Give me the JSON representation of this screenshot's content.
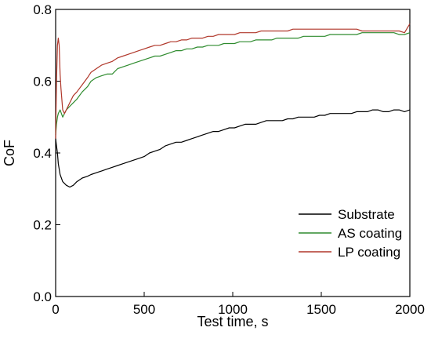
{
  "chart_data": {
    "type": "line",
    "title": "",
    "xlabel": "Test time, s",
    "ylabel": "CoF",
    "xlim": [
      0,
      2000
    ],
    "ylim": [
      0.0,
      0.8
    ],
    "x_ticks": [
      "0",
      "500",
      "1000",
      "1500",
      "2000"
    ],
    "y_ticks": [
      "0.0",
      "0.2",
      "0.4",
      "0.6",
      "0.8"
    ],
    "grid": false,
    "legend_position": "lower-right",
    "series": [
      {
        "name": "Substrate",
        "color": "#000000",
        "points": [
          [
            0,
            0.44
          ],
          [
            5,
            0.42
          ],
          [
            10,
            0.4
          ],
          [
            15,
            0.37
          ],
          [
            25,
            0.34
          ],
          [
            40,
            0.32
          ],
          [
            60,
            0.31
          ],
          [
            80,
            0.305
          ],
          [
            100,
            0.31
          ],
          [
            120,
            0.32
          ],
          [
            150,
            0.33
          ],
          [
            180,
            0.335
          ],
          [
            200,
            0.34
          ],
          [
            230,
            0.345
          ],
          [
            260,
            0.35
          ],
          [
            290,
            0.355
          ],
          [
            320,
            0.36
          ],
          [
            350,
            0.365
          ],
          [
            380,
            0.37
          ],
          [
            410,
            0.375
          ],
          [
            440,
            0.38
          ],
          [
            470,
            0.385
          ],
          [
            500,
            0.39
          ],
          [
            530,
            0.4
          ],
          [
            560,
            0.405
          ],
          [
            590,
            0.41
          ],
          [
            620,
            0.42
          ],
          [
            650,
            0.425
          ],
          [
            680,
            0.43
          ],
          [
            710,
            0.43
          ],
          [
            740,
            0.435
          ],
          [
            770,
            0.44
          ],
          [
            800,
            0.445
          ],
          [
            830,
            0.45
          ],
          [
            860,
            0.455
          ],
          [
            890,
            0.46
          ],
          [
            920,
            0.46
          ],
          [
            950,
            0.465
          ],
          [
            980,
            0.47
          ],
          [
            1010,
            0.47
          ],
          [
            1040,
            0.475
          ],
          [
            1070,
            0.48
          ],
          [
            1100,
            0.48
          ],
          [
            1130,
            0.48
          ],
          [
            1160,
            0.485
          ],
          [
            1190,
            0.49
          ],
          [
            1220,
            0.49
          ],
          [
            1250,
            0.49
          ],
          [
            1280,
            0.49
          ],
          [
            1310,
            0.495
          ],
          [
            1340,
            0.495
          ],
          [
            1370,
            0.5
          ],
          [
            1400,
            0.5
          ],
          [
            1430,
            0.5
          ],
          [
            1460,
            0.5
          ],
          [
            1490,
            0.505
          ],
          [
            1520,
            0.505
          ],
          [
            1550,
            0.51
          ],
          [
            1580,
            0.51
          ],
          [
            1610,
            0.51
          ],
          [
            1640,
            0.51
          ],
          [
            1670,
            0.51
          ],
          [
            1700,
            0.515
          ],
          [
            1730,
            0.515
          ],
          [
            1760,
            0.515
          ],
          [
            1790,
            0.52
          ],
          [
            1820,
            0.52
          ],
          [
            1850,
            0.515
          ],
          [
            1880,
            0.515
          ],
          [
            1910,
            0.52
          ],
          [
            1940,
            0.52
          ],
          [
            1970,
            0.515
          ],
          [
            2000,
            0.52
          ]
        ]
      },
      {
        "name": "AS coating",
        "color": "#2e8b2e",
        "points": [
          [
            0,
            0.45
          ],
          [
            5,
            0.48
          ],
          [
            10,
            0.5
          ],
          [
            15,
            0.51
          ],
          [
            25,
            0.52
          ],
          [
            40,
            0.5
          ],
          [
            60,
            0.52
          ],
          [
            80,
            0.53
          ],
          [
            100,
            0.54
          ],
          [
            120,
            0.55
          ],
          [
            150,
            0.57
          ],
          [
            180,
            0.585
          ],
          [
            200,
            0.6
          ],
          [
            230,
            0.61
          ],
          [
            260,
            0.615
          ],
          [
            290,
            0.62
          ],
          [
            320,
            0.62
          ],
          [
            350,
            0.635
          ],
          [
            380,
            0.64
          ],
          [
            410,
            0.645
          ],
          [
            440,
            0.65
          ],
          [
            470,
            0.655
          ],
          [
            500,
            0.66
          ],
          [
            530,
            0.665
          ],
          [
            560,
            0.67
          ],
          [
            590,
            0.67
          ],
          [
            620,
            0.675
          ],
          [
            650,
            0.68
          ],
          [
            680,
            0.685
          ],
          [
            710,
            0.685
          ],
          [
            740,
            0.69
          ],
          [
            770,
            0.69
          ],
          [
            800,
            0.695
          ],
          [
            830,
            0.695
          ],
          [
            860,
            0.7
          ],
          [
            890,
            0.7
          ],
          [
            920,
            0.7
          ],
          [
            950,
            0.705
          ],
          [
            980,
            0.705
          ],
          [
            1010,
            0.705
          ],
          [
            1040,
            0.71
          ],
          [
            1070,
            0.71
          ],
          [
            1100,
            0.71
          ],
          [
            1130,
            0.715
          ],
          [
            1160,
            0.715
          ],
          [
            1190,
            0.715
          ],
          [
            1220,
            0.715
          ],
          [
            1250,
            0.72
          ],
          [
            1280,
            0.72
          ],
          [
            1310,
            0.72
          ],
          [
            1340,
            0.72
          ],
          [
            1370,
            0.72
          ],
          [
            1400,
            0.725
          ],
          [
            1430,
            0.725
          ],
          [
            1460,
            0.725
          ],
          [
            1490,
            0.725
          ],
          [
            1520,
            0.725
          ],
          [
            1550,
            0.73
          ],
          [
            1580,
            0.73
          ],
          [
            1610,
            0.73
          ],
          [
            1640,
            0.73
          ],
          [
            1670,
            0.73
          ],
          [
            1700,
            0.73
          ],
          [
            1730,
            0.735
          ],
          [
            1760,
            0.735
          ],
          [
            1790,
            0.735
          ],
          [
            1820,
            0.735
          ],
          [
            1850,
            0.735
          ],
          [
            1880,
            0.735
          ],
          [
            1910,
            0.735
          ],
          [
            1940,
            0.73
          ],
          [
            1970,
            0.73
          ],
          [
            2000,
            0.735
          ]
        ]
      },
      {
        "name": "LP coating",
        "color": "#b0372a",
        "points": [
          [
            0,
            0.44
          ],
          [
            5,
            0.6
          ],
          [
            10,
            0.7
          ],
          [
            15,
            0.72
          ],
          [
            20,
            0.7
          ],
          [
            25,
            0.62
          ],
          [
            30,
            0.58
          ],
          [
            40,
            0.52
          ],
          [
            50,
            0.51
          ],
          [
            60,
            0.52
          ],
          [
            80,
            0.54
          ],
          [
            100,
            0.56
          ],
          [
            120,
            0.57
          ],
          [
            150,
            0.59
          ],
          [
            180,
            0.61
          ],
          [
            200,
            0.625
          ],
          [
            230,
            0.635
          ],
          [
            260,
            0.645
          ],
          [
            290,
            0.65
          ],
          [
            320,
            0.655
          ],
          [
            350,
            0.665
          ],
          [
            380,
            0.67
          ],
          [
            410,
            0.675
          ],
          [
            440,
            0.68
          ],
          [
            470,
            0.685
          ],
          [
            500,
            0.69
          ],
          [
            530,
            0.695
          ],
          [
            560,
            0.7
          ],
          [
            590,
            0.7
          ],
          [
            620,
            0.705
          ],
          [
            650,
            0.71
          ],
          [
            680,
            0.71
          ],
          [
            710,
            0.715
          ],
          [
            740,
            0.715
          ],
          [
            770,
            0.72
          ],
          [
            800,
            0.72
          ],
          [
            830,
            0.72
          ],
          [
            860,
            0.725
          ],
          [
            890,
            0.725
          ],
          [
            920,
            0.73
          ],
          [
            950,
            0.73
          ],
          [
            980,
            0.73
          ],
          [
            1010,
            0.73
          ],
          [
            1040,
            0.735
          ],
          [
            1070,
            0.735
          ],
          [
            1100,
            0.735
          ],
          [
            1130,
            0.735
          ],
          [
            1160,
            0.74
          ],
          [
            1190,
            0.74
          ],
          [
            1220,
            0.74
          ],
          [
            1250,
            0.74
          ],
          [
            1280,
            0.74
          ],
          [
            1310,
            0.74
          ],
          [
            1340,
            0.745
          ],
          [
            1370,
            0.745
          ],
          [
            1400,
            0.745
          ],
          [
            1430,
            0.745
          ],
          [
            1460,
            0.745
          ],
          [
            1490,
            0.745
          ],
          [
            1520,
            0.745
          ],
          [
            1550,
            0.745
          ],
          [
            1580,
            0.745
          ],
          [
            1610,
            0.745
          ],
          [
            1640,
            0.745
          ],
          [
            1670,
            0.745
          ],
          [
            1700,
            0.745
          ],
          [
            1730,
            0.74
          ],
          [
            1760,
            0.74
          ],
          [
            1790,
            0.74
          ],
          [
            1820,
            0.74
          ],
          [
            1850,
            0.74
          ],
          [
            1880,
            0.74
          ],
          [
            1910,
            0.74
          ],
          [
            1940,
            0.74
          ],
          [
            1970,
            0.735
          ],
          [
            2000,
            0.76
          ]
        ]
      }
    ]
  }
}
